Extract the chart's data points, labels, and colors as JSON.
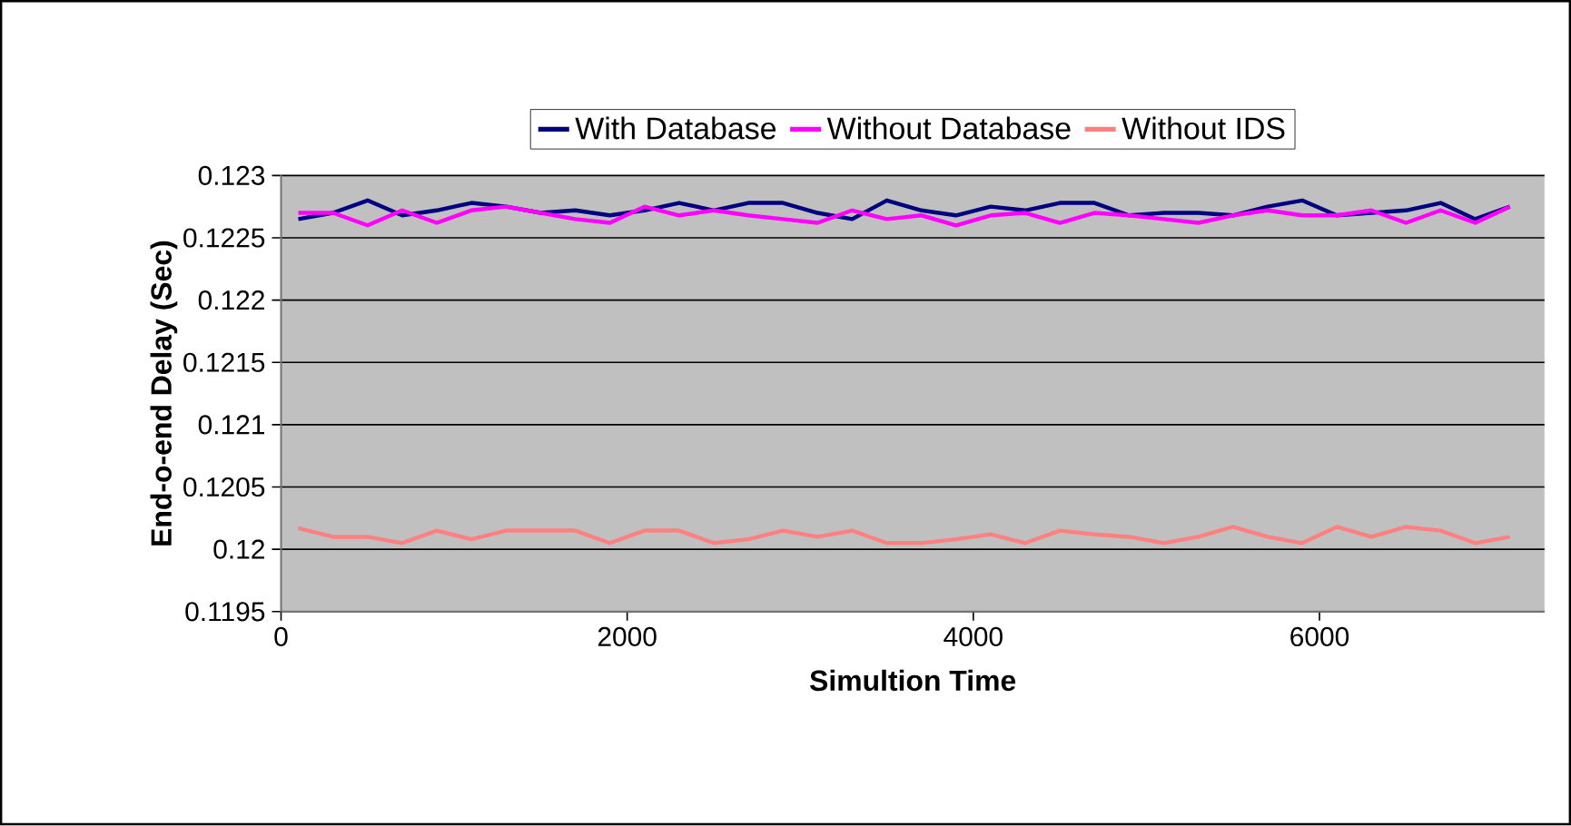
{
  "chart_data": {
    "type": "line",
    "xlabel": "Simultion Time",
    "ylabel": "End-o-end Delay (Sec)",
    "x": [
      100,
      300,
      500,
      700,
      900,
      1100,
      1300,
      1500,
      1700,
      1900,
      2100,
      2300,
      2500,
      2700,
      2900,
      3100,
      3300,
      3500,
      3700,
      3900,
      4100,
      4300,
      4500,
      4700,
      4900,
      5100,
      5300,
      5500,
      5700,
      5900,
      6100,
      6300,
      6500,
      6700,
      6900,
      7100
    ],
    "series": [
      {
        "name": "With Database",
        "color": "#000080",
        "values": [
          0.12265,
          0.1227,
          0.1228,
          0.12268,
          0.12272,
          0.12278,
          0.12275,
          0.1227,
          0.12272,
          0.12268,
          0.12272,
          0.12278,
          0.12272,
          0.12278,
          0.12278,
          0.1227,
          0.12265,
          0.1228,
          0.12272,
          0.12268,
          0.12275,
          0.12272,
          0.12278,
          0.12278,
          0.12268,
          0.1227,
          0.1227,
          0.12268,
          0.12275,
          0.1228,
          0.12268,
          0.1227,
          0.12272,
          0.12278,
          0.12265,
          0.12275
        ]
      },
      {
        "name": "Without Database",
        "color": "#ff00ff",
        "values": [
          0.1227,
          0.1227,
          0.1226,
          0.12272,
          0.12262,
          0.12272,
          0.12275,
          0.1227,
          0.12265,
          0.12262,
          0.12275,
          0.12268,
          0.12272,
          0.12268,
          0.12265,
          0.12262,
          0.12272,
          0.12265,
          0.12268,
          0.1226,
          0.12268,
          0.1227,
          0.12262,
          0.1227,
          0.12268,
          0.12265,
          0.12262,
          0.12268,
          0.12272,
          0.12268,
          0.12268,
          0.12272,
          0.12262,
          0.12272,
          0.12262,
          0.12275
        ]
      },
      {
        "name": "Without IDS",
        "color": "#ff8080",
        "values": [
          0.12017,
          0.1201,
          0.1201,
          0.12005,
          0.12015,
          0.12008,
          0.12015,
          0.12015,
          0.12015,
          0.12005,
          0.12015,
          0.12015,
          0.12005,
          0.12008,
          0.12015,
          0.1201,
          0.12015,
          0.12005,
          0.12005,
          0.12008,
          0.12012,
          0.12005,
          0.12015,
          0.12012,
          0.1201,
          0.12005,
          0.1201,
          0.12018,
          0.1201,
          0.12005,
          0.12018,
          0.1201,
          0.12018,
          0.12015,
          0.12005,
          0.1201
        ]
      }
    ],
    "xlim": [
      0,
      7300
    ],
    "xticks": [
      0,
      2000,
      4000,
      6000
    ],
    "ylim": [
      0.1195,
      0.123
    ],
    "yticks": [
      0.1195,
      0.12,
      0.1205,
      0.121,
      0.1215,
      0.122,
      0.1225,
      0.123
    ],
    "grid": "y",
    "legend": "top",
    "marker": "none",
    "line_style": "solid"
  }
}
